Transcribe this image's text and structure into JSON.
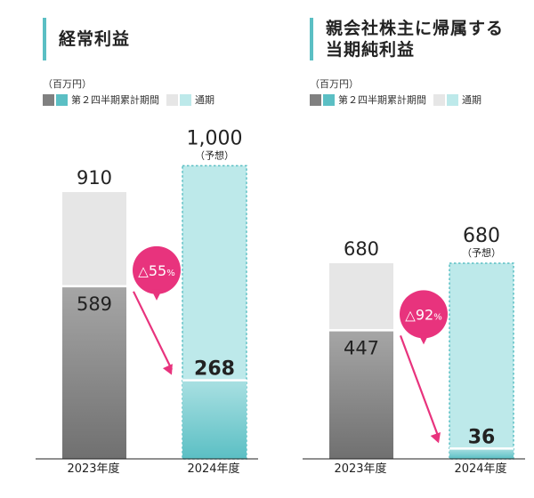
{
  "colors": {
    "accent": "#5bbfc4",
    "gray_dark": "#808080",
    "gray_light": "#e6e6e6",
    "teal_dark": "#5bbfc4",
    "teal_light": "#bde9ea",
    "arrow": "#e8337d"
  },
  "legend": {
    "unit": "（百万円）",
    "h1": "第２四半期累計期間",
    "full": "通期"
  },
  "chart_data": [
    {
      "type": "bar",
      "title": "経常利益",
      "categories": [
        "2023年度",
        "2024年度"
      ],
      "series": [
        {
          "name": "第２四半期累計期間",
          "values": [
            589,
            268
          ]
        },
        {
          "name": "通期",
          "values": [
            910,
            1000
          ]
        }
      ],
      "full_labels": [
        "910",
        "1,000"
      ],
      "h1_labels": [
        "589",
        "268"
      ],
      "forecast_note": "（予想）",
      "change_badge": {
        "symbol": "△",
        "value": "55",
        "unit": "%"
      },
      "ylim": [
        0,
        1000
      ]
    },
    {
      "type": "bar",
      "title": "親会社株主に帰属する当期純利益",
      "title_lines": [
        "親会社株主に帰属する",
        "当期純利益"
      ],
      "categories": [
        "2023年度",
        "2024年度"
      ],
      "series": [
        {
          "name": "第２四半期累計期間",
          "values": [
            447,
            36
          ]
        },
        {
          "name": "通期",
          "values": [
            680,
            680
          ]
        }
      ],
      "full_labels": [
        "680",
        "680"
      ],
      "h1_labels": [
        "447",
        "36"
      ],
      "forecast_note": "（予想）",
      "change_badge": {
        "symbol": "△",
        "value": "92",
        "unit": "%"
      },
      "ylim": [
        0,
        680
      ]
    }
  ]
}
